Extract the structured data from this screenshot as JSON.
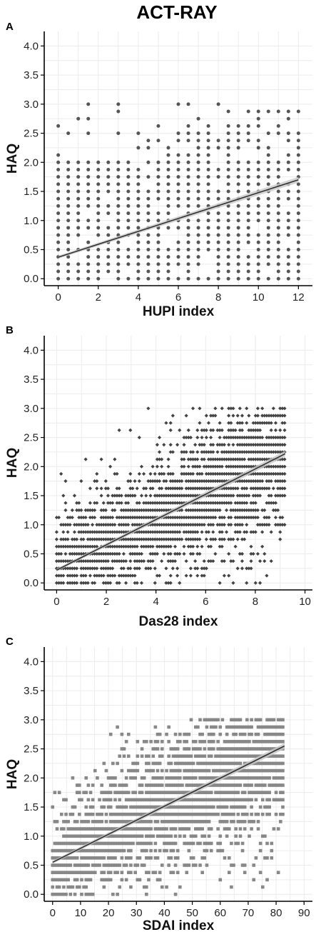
{
  "title": "ACT-RAY",
  "chart_data": [
    {
      "panel": "A",
      "type": "scatter",
      "xlabel": "HUPI index",
      "ylabel": "HAQ",
      "xlim": [
        -0.7,
        12.7
      ],
      "ylim": [
        -0.12,
        4.25
      ],
      "xticks": [
        "0",
        "2",
        "4",
        "6",
        "8",
        "10",
        "12"
      ],
      "yticks": [
        "0.0",
        "0.5",
        "1.0",
        "1.5",
        "2.0",
        "2.5",
        "3.0",
        "3.5",
        "4.0"
      ],
      "marker": "circle",
      "grid": true,
      "regression_line": {
        "x": [
          0,
          12
        ],
        "y": [
          0.37,
          1.7
        ]
      },
      "color": "#555555"
    },
    {
      "panel": "B",
      "type": "scatter",
      "xlabel": "Das28 index",
      "ylabel": "HAQ",
      "xlim": [
        -0.5,
        10.3
      ],
      "ylim": [
        -0.12,
        4.25
      ],
      "xticks": [
        "0",
        "2",
        "4",
        "6",
        "8",
        "10"
      ],
      "yticks": [
        "0.0",
        "0.5",
        "1.0",
        "1.5",
        "2.0",
        "2.5",
        "3.0",
        "3.5",
        "4.0"
      ],
      "marker": "diamond",
      "grid": true,
      "regression_line": {
        "x": [
          0,
          9.2
        ],
        "y": [
          0.22,
          2.22
        ]
      },
      "color": "#444444"
    },
    {
      "panel": "C",
      "type": "scatter",
      "xlabel": "SDAI index",
      "ylabel": "HAQ",
      "xlim": [
        -3,
        93
      ],
      "ylim": [
        -0.12,
        4.25
      ],
      "xticks": [
        "0",
        "10",
        "20",
        "30",
        "40",
        "50",
        "60",
        "70",
        "80",
        "90"
      ],
      "yticks": [
        "0.0",
        "0.5",
        "1.0",
        "1.5",
        "2.0",
        "2.5",
        "3.0",
        "3.5",
        "4.0"
      ],
      "marker": "square",
      "grid": true,
      "regression_line": {
        "x": [
          0,
          83
        ],
        "y": [
          0.55,
          2.55
        ]
      },
      "color": "#888888"
    }
  ]
}
